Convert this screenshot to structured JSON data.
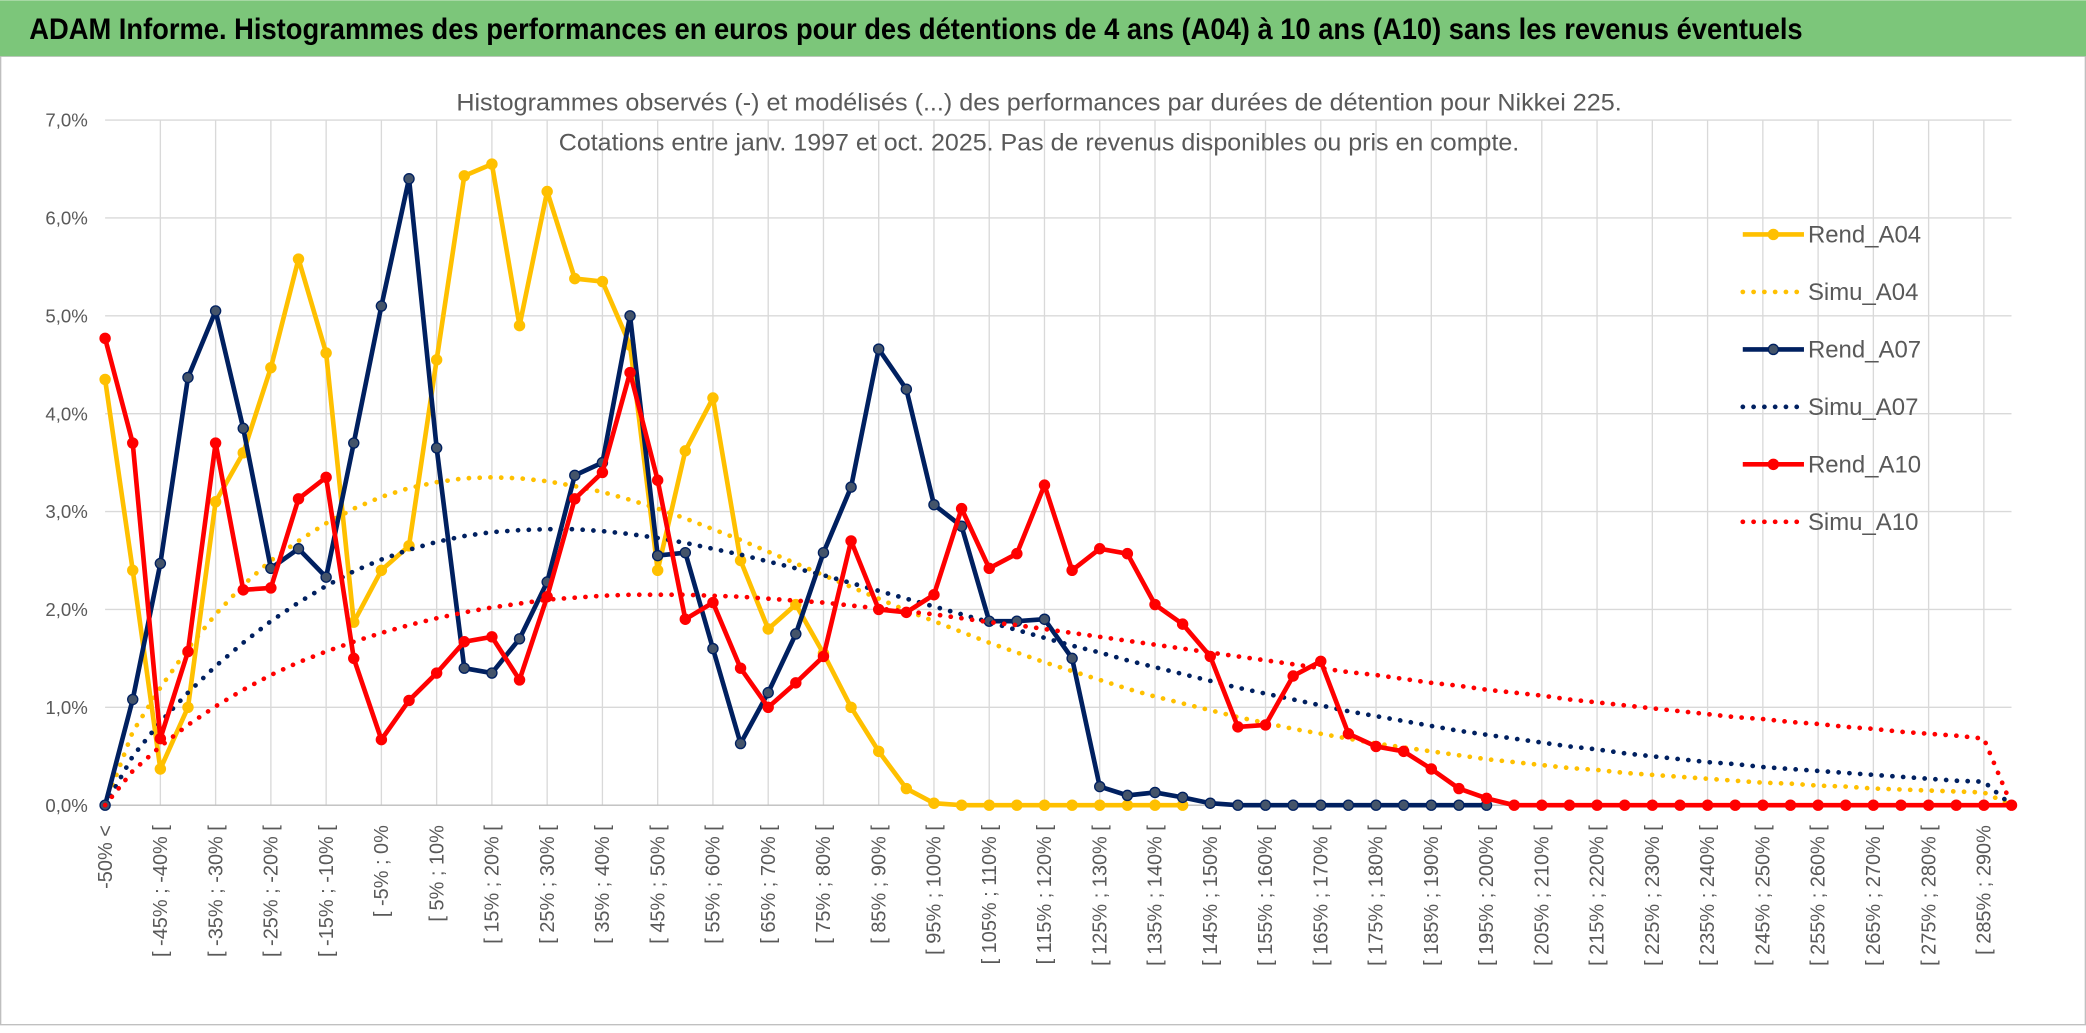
{
  "header": {
    "title": "ADAM Informe. Histogrammes des performances en euros pour des détentions de 4 ans (A04) à 10 ans (A10) sans les revenus éventuels"
  },
  "chart_data": {
    "type": "line",
    "title": "Histogrammes observés (-) et modélisés (...) des performances par durées de détention pour Nikkei 225.",
    "subtitle": "Cotations entre janv. 1997 et oct. 2025. Pas de revenus disponibles ou pris en compte.",
    "categories": [
      "-50% <",
      null,
      "[ -45% ; -40% [",
      null,
      "[ -35% ; -30% [",
      null,
      "[ -25% ; -20% [",
      null,
      "[ -15% ; -10% [",
      null,
      "[ -5% ; 0%",
      null,
      "[ 5% ; 10%",
      null,
      "[ 15% ; 20% [",
      null,
      "[ 25% ; 30% [",
      null,
      "[ 35% ; 40% [",
      null,
      "[ 45% ; 50% [",
      null,
      "[ 55% ; 60% [",
      null,
      "[ 65% ; 70% [",
      null,
      "[ 75% ; 80% [",
      null,
      "[ 85% ; 90% [",
      null,
      "[ 95% ; 100% [",
      null,
      "[ 105% ; 110% [",
      null,
      "[ 115% ; 120% [",
      null,
      "[ 125% ; 130% [",
      null,
      "[ 135% ; 140% [",
      null,
      "[ 145% ; 150% [",
      null,
      "[ 155% ; 160% [",
      null,
      "[ 165% ; 170% [",
      null,
      "[ 175% ; 180% [",
      null,
      "[ 185% ; 190% [",
      null,
      "[ 195% ; 200% [",
      null,
      "[ 205% ; 210% [",
      null,
      "[ 215% ; 220% [",
      null,
      "[ 225% ; 230% [",
      null,
      "[ 235% ; 240% [",
      null,
      "[ 245% ; 250% [",
      null,
      "[ 255% ; 260% [",
      null,
      "[ 265% ; 270% [",
      null,
      "[ 275% ; 280% [",
      null,
      "[ 285% ; 290%",
      null
    ],
    "series": [
      {
        "name": "Rend_A04",
        "color": "#FFC000",
        "style": "solid",
        "marker": true,
        "values": [
          4.35,
          2.4,
          0.37,
          1.0,
          3.1,
          3.6,
          4.47,
          5.58,
          4.62,
          1.87,
          2.4,
          2.65,
          4.55,
          6.43,
          6.55,
          4.9,
          6.27,
          5.38,
          5.35,
          4.7,
          2.4,
          3.62,
          4.16,
          2.5,
          1.8,
          2.05,
          1.55,
          1.0,
          0.55,
          0.17,
          0.02,
          0,
          0,
          0,
          0,
          0,
          0,
          0,
          0,
          0,
          null,
          null,
          null,
          null,
          null,
          null,
          null,
          null,
          null,
          null,
          null,
          null,
          null,
          null,
          null,
          null,
          null,
          null,
          null,
          null,
          null,
          null,
          null,
          null,
          null,
          null,
          null,
          null,
          null,
          null
        ]
      },
      {
        "name": "Simu_A04",
        "color": "#FFC000",
        "style": "dotted",
        "marker": false,
        "values": [
          0,
          0.75,
          1.2,
          1.6,
          1.95,
          2.25,
          2.5,
          2.7,
          2.88,
          3.03,
          3.15,
          3.24,
          3.3,
          3.34,
          3.35,
          3.34,
          3.31,
          3.26,
          3.2,
          3.12,
          3.03,
          2.93,
          2.82,
          2.71,
          2.59,
          2.47,
          2.35,
          2.23,
          2.11,
          1.99,
          1.88,
          1.77,
          1.66,
          1.56,
          1.46,
          1.37,
          1.28,
          1.19,
          1.11,
          1.04,
          0.97,
          0.9,
          0.84,
          0.78,
          0.73,
          0.68,
          0.63,
          0.59,
          0.55,
          0.51,
          0.47,
          0.44,
          0.41,
          0.38,
          0.36,
          0.33,
          0.31,
          0.29,
          0.27,
          0.25,
          0.23,
          0.22,
          0.2,
          0.19,
          0.17,
          0.16,
          0.15,
          0.14,
          0.13,
          0
        ]
      },
      {
        "name": "Rend_A07",
        "color": "#002060",
        "style": "solid",
        "marker": true,
        "values": [
          0,
          1.08,
          2.47,
          4.37,
          5.05,
          3.85,
          2.42,
          2.62,
          2.33,
          3.7,
          5.1,
          6.4,
          3.65,
          1.4,
          1.35,
          1.7,
          2.28,
          3.37,
          3.5,
          5.0,
          2.55,
          2.58,
          1.6,
          0.63,
          1.15,
          1.75,
          2.58,
          3.25,
          4.66,
          4.25,
          3.07,
          2.85,
          1.88,
          1.88,
          1.9,
          1.5,
          0.19,
          0.1,
          0.13,
          0.08,
          0.02,
          0,
          0,
          0,
          0,
          0,
          0,
          0,
          0,
          0,
          0,
          null,
          null,
          null,
          null,
          null,
          null,
          null,
          null,
          null,
          null,
          null,
          null,
          null,
          null,
          null,
          null,
          null,
          null,
          null
        ]
      },
      {
        "name": "Simu_A07",
        "color": "#002060",
        "style": "dotted",
        "marker": false,
        "values": [
          0,
          0.5,
          0.85,
          1.15,
          1.42,
          1.66,
          1.88,
          2.07,
          2.24,
          2.39,
          2.51,
          2.61,
          2.69,
          2.75,
          2.79,
          2.81,
          2.82,
          2.82,
          2.8,
          2.77,
          2.73,
          2.68,
          2.62,
          2.56,
          2.49,
          2.42,
          2.35,
          2.27,
          2.19,
          2.11,
          2.03,
          1.95,
          1.87,
          1.79,
          1.71,
          1.63,
          1.56,
          1.48,
          1.41,
          1.34,
          1.27,
          1.2,
          1.14,
          1.08,
          1.02,
          0.96,
          0.91,
          0.86,
          0.81,
          0.76,
          0.72,
          0.68,
          0.64,
          0.6,
          0.57,
          0.53,
          0.5,
          0.47,
          0.44,
          0.42,
          0.39,
          0.37,
          0.35,
          0.33,
          0.31,
          0.29,
          0.27,
          0.25,
          0.24,
          0
        ]
      },
      {
        "name": "Rend_A10",
        "color": "#FF0000",
        "style": "solid",
        "marker": true,
        "values": [
          4.77,
          3.7,
          0.68,
          1.57,
          3.7,
          2.2,
          2.22,
          3.13,
          3.35,
          1.5,
          0.67,
          1.07,
          1.35,
          1.67,
          1.72,
          1.28,
          2.13,
          3.13,
          3.4,
          4.42,
          3.32,
          1.9,
          2.07,
          1.4,
          1.0,
          1.25,
          1.52,
          2.7,
          2.0,
          1.97,
          2.15,
          3.03,
          2.42,
          2.57,
          3.27,
          2.4,
          2.62,
          2.57,
          2.05,
          1.85,
          1.52,
          0.8,
          0.82,
          1.32,
          1.47,
          0.73,
          0.6,
          0.55,
          0.37,
          0.17,
          0.07,
          0,
          0,
          0,
          0,
          0,
          0,
          0,
          0,
          0,
          0,
          0,
          0,
          0,
          0,
          0,
          0,
          0,
          0,
          0
        ]
      },
      {
        "name": "Simu_A10",
        "color": "#FF0000",
        "style": "dotted",
        "marker": false,
        "values": [
          0,
          0.35,
          0.6,
          0.82,
          1.01,
          1.18,
          1.33,
          1.46,
          1.57,
          1.67,
          1.76,
          1.84,
          1.91,
          1.97,
          2.02,
          2.06,
          2.1,
          2.12,
          2.14,
          2.15,
          2.15,
          2.15,
          2.14,
          2.13,
          2.11,
          2.09,
          2.07,
          2.04,
          2.01,
          1.98,
          1.95,
          1.91,
          1.87,
          1.84,
          1.8,
          1.76,
          1.72,
          1.68,
          1.64,
          1.6,
          1.56,
          1.52,
          1.48,
          1.44,
          1.4,
          1.36,
          1.33,
          1.29,
          1.25,
          1.22,
          1.18,
          1.15,
          1.12,
          1.08,
          1.05,
          1.02,
          0.99,
          0.96,
          0.93,
          0.9,
          0.88,
          0.85,
          0.83,
          0.8,
          0.78,
          0.75,
          0.73,
          0.71,
          0.68,
          0
        ]
      }
    ],
    "ylim": [
      0,
      7
    ],
    "yticks": [
      {
        "value": 0,
        "label": "0,0%"
      },
      {
        "value": 1,
        "label": "1,0%"
      },
      {
        "value": 2,
        "label": "2,0%"
      },
      {
        "value": 3,
        "label": "3,0%"
      },
      {
        "value": 4,
        "label": "4,0%"
      },
      {
        "value": 5,
        "label": "5,0%"
      },
      {
        "value": 6,
        "label": "6,0%"
      },
      {
        "value": 7,
        "label": "7,0%"
      }
    ],
    "grid": true,
    "legend": "right"
  }
}
